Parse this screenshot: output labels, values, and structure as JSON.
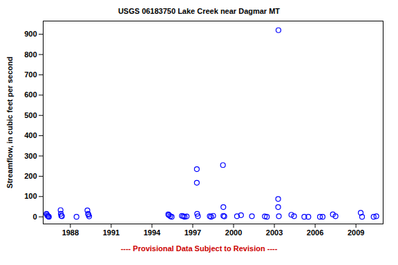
{
  "chart_data": {
    "type": "scatter",
    "title": "USGS 06183750 Lake Creek near Dagmar MT",
    "caption": "---- Provisional Data Subject to Revision ----",
    "y_label": "Streamflow, in cubic feet per second",
    "x": [
      1986.24,
      1986.28,
      1986.33,
      1986.38,
      1986.42,
      1987.28,
      1987.3,
      1987.33,
      1987.38,
      1988.45,
      1989.25,
      1989.3,
      1989.33,
      1989.38,
      1995.2,
      1995.25,
      1995.35,
      1995.45,
      1996.2,
      1996.3,
      1996.4,
      1996.55,
      1997.3,
      1997.3,
      1997.32,
      1997.38,
      1998.25,
      1998.35,
      1998.5,
      1999.22,
      1999.25,
      1999.25,
      1999.32,
      2000.25,
      2000.55,
      2001.35,
      2002.3,
      2002.45,
      2003.3,
      2003.28,
      2003.28,
      2003.33,
      2004.25,
      2004.45,
      2005.2,
      2005.5,
      2006.35,
      2006.55,
      2007.3,
      2007.5,
      2009.35,
      2009.45,
      2010.3,
      2010.5
    ],
    "values": [
      15,
      10,
      5,
      2,
      0,
      33,
      15,
      5,
      3,
      0,
      32,
      15,
      10,
      2,
      12,
      8,
      3,
      0,
      5,
      3,
      0,
      2,
      235,
      168,
      15,
      3,
      3,
      0,
      5,
      255,
      48,
      5,
      2,
      3,
      8,
      3,
      2,
      0,
      920,
      88,
      48,
      3,
      10,
      3,
      0,
      0,
      0,
      0,
      12,
      3,
      20,
      0,
      0,
      3
    ],
    "color": "#0000ff",
    "marker": "open_circle",
    "xlim": [
      1986.0,
      2011.0
    ],
    "xticks": [
      1988,
      1991,
      1994,
      1997,
      2000,
      2003,
      2006,
      2009
    ],
    "ylim": [
      -35,
      965
    ],
    "yticks": [
      0,
      100,
      200,
      300,
      400,
      500,
      600,
      700,
      800,
      900
    ],
    "grid": false
  }
}
